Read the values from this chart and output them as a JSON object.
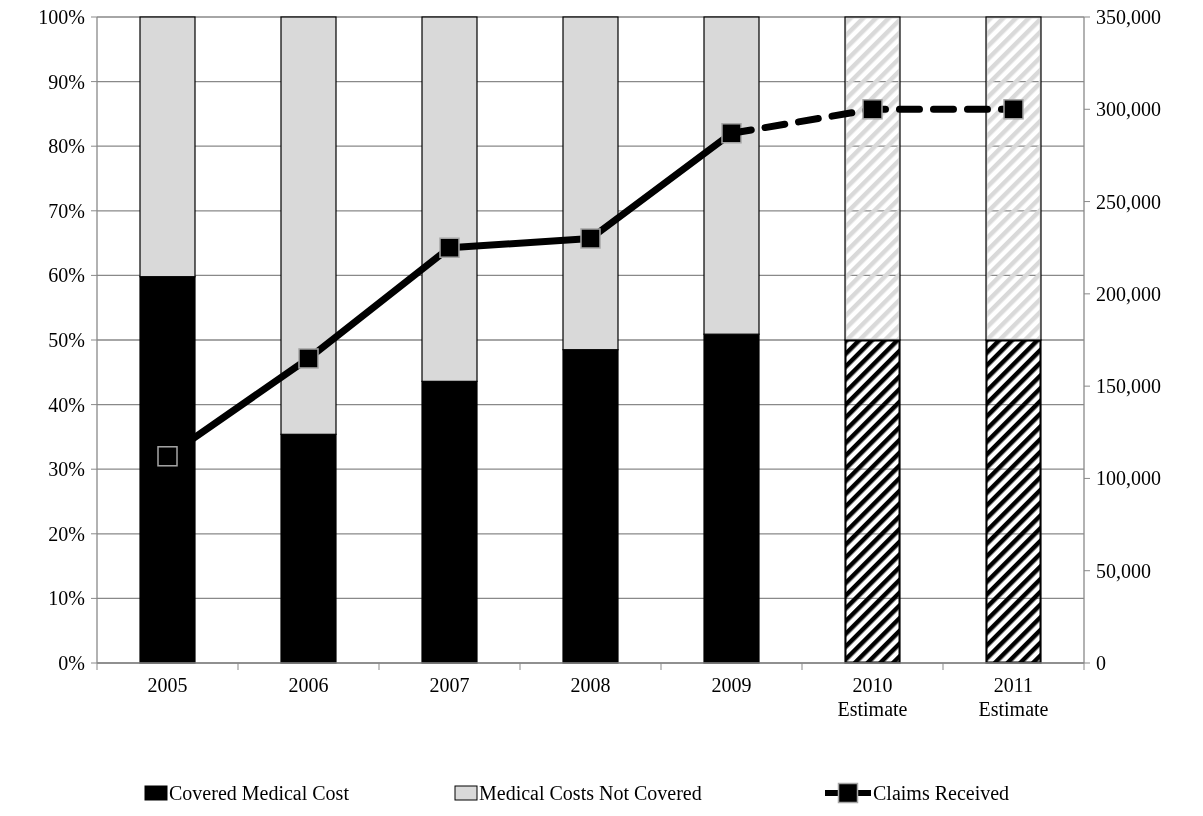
{
  "chart_data": {
    "type": "bar",
    "stacked": true,
    "categories": [
      "2005",
      "2006",
      "2007",
      "2008",
      "2009",
      "2010\nEstimate",
      "2011\nEstimate"
    ],
    "series": [
      {
        "name": "Covered Medical Cost",
        "color": "#000000",
        "values": [
          59.8,
          35.4,
          43.6,
          48.5,
          50.9,
          50,
          50
        ]
      },
      {
        "name": "Medical Costs Not Covered",
        "color": "#d9d9d9",
        "values": [
          40.2,
          64.6,
          56.4,
          51.5,
          49.1,
          50,
          50
        ]
      },
      {
        "name": "Claims Received",
        "type": "line",
        "axis": "y2",
        "color": "#000000",
        "marker": "square",
        "line_style": "solid",
        "values": [
          112000,
          165000,
          225000,
          230000,
          287000,
          null,
          null
        ]
      },
      {
        "type": "line",
        "axis": "y2",
        "color": "#000000",
        "marker": "square",
        "line_style": "dashed",
        "values": [
          null,
          null,
          null,
          null,
          287000,
          300000,
          300000
        ]
      }
    ],
    "ylim": [
      0,
      100
    ],
    "yticks": [
      {
        "value": 0,
        "label": "0%"
      },
      {
        "value": 10,
        "label": "10%"
      },
      {
        "value": 20,
        "label": "20%"
      },
      {
        "value": 30,
        "label": "30%"
      },
      {
        "value": 40,
        "label": "40%"
      },
      {
        "value": 50,
        "label": "50%"
      },
      {
        "value": 60,
        "label": "60%"
      },
      {
        "value": 70,
        "label": "70%"
      },
      {
        "value": 80,
        "label": "80%"
      },
      {
        "value": 90,
        "label": "90%"
      },
      {
        "value": 100,
        "label": "100%"
      }
    ],
    "y2lim": [
      0,
      350000
    ],
    "y2ticks": [
      0,
      {
        "value": 50000,
        "label": "50,000"
      },
      {
        "value": 100000,
        "label": "100,000"
      },
      {
        "value": 150000,
        "label": "150,000"
      },
      {
        "value": 200000,
        "label": "200,000"
      },
      {
        "value": 250000,
        "label": "250,000"
      },
      {
        "value": 300000,
        "label": "300,000"
      },
      {
        "value": 350000,
        "label": "350,000"
      }
    ],
    "grid": "y",
    "legend": "bottom"
  }
}
